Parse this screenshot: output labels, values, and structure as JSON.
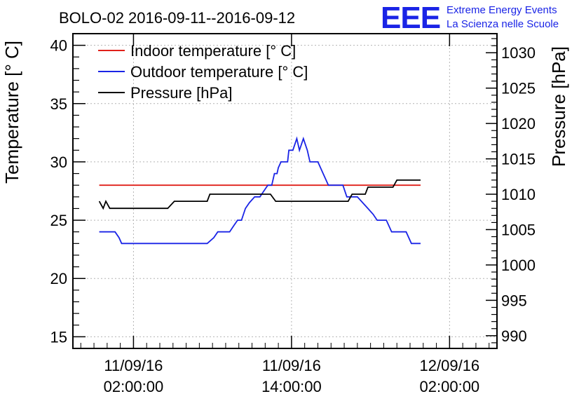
{
  "chart_data": {
    "type": "line",
    "title": "BOLO-02 2016-09-11--2016-09-12",
    "logo": {
      "mark": "EEE",
      "line1": "Extreme Energy Events",
      "line2": "La Scienza nelle Scuole"
    },
    "ylabel_left": "Temperature [° C]",
    "ylabel_right": "Pressure [hPa]",
    "x_hours_range": [
      -4.6,
      27.6
    ],
    "ylim_left": [
      14,
      41
    ],
    "ylim_right": [
      988.2,
      1032.7
    ],
    "grid": true,
    "legend_position": "top-left",
    "x_ticks": [
      {
        "hour": 0,
        "date": "11/09/16",
        "time": "02:00:00"
      },
      {
        "hour": 12,
        "date": "11/09/16",
        "time": "14:00:00"
      },
      {
        "hour": 24,
        "date": "12/09/16",
        "time": "02:00:00"
      }
    ],
    "y_ticks_left": [
      "15",
      "20",
      "25",
      "30",
      "35",
      "40"
    ],
    "y_ticks_right": [
      "990",
      "995",
      "1000",
      "1005",
      "1010",
      "1015",
      "1020",
      "1025",
      "1030"
    ],
    "series": [
      {
        "name": "Indoor temperature [° C]",
        "color": "#e0201a",
        "axis": "left",
        "points": [
          [
            -2.6,
            28
          ],
          [
            21.8,
            28
          ]
        ]
      },
      {
        "name": "Outdoor temperature [° C]",
        "color": "#1a24e6",
        "axis": "left",
        "points": [
          [
            -2.6,
            24
          ],
          [
            -1.4,
            24
          ],
          [
            -1.1,
            23.5
          ],
          [
            -0.9,
            23
          ],
          [
            5.6,
            23
          ],
          [
            6.1,
            23.5
          ],
          [
            6.4,
            24
          ],
          [
            7.3,
            24
          ],
          [
            7.6,
            24.5
          ],
          [
            7.9,
            25
          ],
          [
            8.2,
            25
          ],
          [
            8.5,
            26
          ],
          [
            8.8,
            26.5
          ],
          [
            9.2,
            27
          ],
          [
            9.6,
            27
          ],
          [
            9.9,
            27.5
          ],
          [
            10.2,
            28
          ],
          [
            10.5,
            28
          ],
          [
            10.7,
            29
          ],
          [
            10.9,
            29
          ],
          [
            11.0,
            29.5
          ],
          [
            11.2,
            30
          ],
          [
            11.7,
            30
          ],
          [
            11.8,
            31
          ],
          [
            12.1,
            31
          ],
          [
            12.4,
            32
          ],
          [
            12.6,
            31
          ],
          [
            12.9,
            32
          ],
          [
            13.2,
            31
          ],
          [
            13.4,
            30
          ],
          [
            14.0,
            30
          ],
          [
            14.4,
            29
          ],
          [
            14.8,
            28
          ],
          [
            15.9,
            28
          ],
          [
            16.2,
            27
          ],
          [
            17.0,
            27
          ],
          [
            17.4,
            26.5
          ],
          [
            17.8,
            26
          ],
          [
            18.2,
            25.5
          ],
          [
            18.5,
            25
          ],
          [
            19.2,
            25
          ],
          [
            19.6,
            24
          ],
          [
            20.7,
            24
          ],
          [
            21.1,
            23
          ],
          [
            21.8,
            23
          ]
        ]
      },
      {
        "name": "Pressure [hPa]",
        "color": "#000000",
        "axis": "right",
        "points": [
          [
            -2.6,
            1009
          ],
          [
            -2.3,
            1008
          ],
          [
            -2.1,
            1009
          ],
          [
            -1.8,
            1008
          ],
          [
            2.6,
            1008
          ],
          [
            3.1,
            1009
          ],
          [
            5.6,
            1009
          ],
          [
            5.8,
            1010
          ],
          [
            10.4,
            1010
          ],
          [
            10.8,
            1009
          ],
          [
            16.2,
            1009
          ],
          [
            16.3,
            1009
          ],
          [
            16.6,
            1010
          ],
          [
            17.6,
            1010
          ],
          [
            17.8,
            1011
          ],
          [
            19.7,
            1011
          ],
          [
            20.0,
            1012
          ],
          [
            21.8,
            1012
          ]
        ]
      }
    ]
  }
}
